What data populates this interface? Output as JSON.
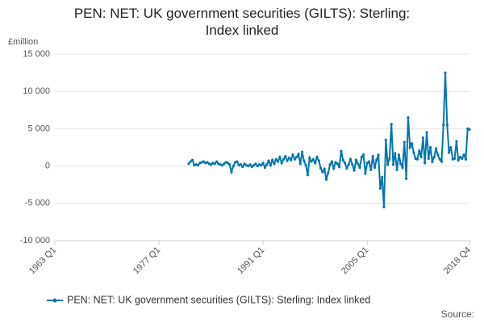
{
  "chart_data": {
    "type": "line",
    "title": "PEN: NET: UK government securities (GILTS): Sterling: Index linked",
    "y_unit": "£million",
    "source_label": "Source:",
    "categories": [
      "1963 Q1",
      null,
      null,
      null,
      null,
      null,
      null,
      null,
      null,
      null,
      null,
      null,
      null,
      null,
      null,
      null,
      null,
      null,
      null,
      null,
      null,
      null,
      null,
      null,
      null,
      null,
      null,
      null,
      null,
      null,
      null,
      null,
      null,
      null,
      null,
      null,
      null,
      null,
      null,
      null,
      null,
      null,
      null,
      null,
      null,
      null,
      null,
      null,
      null,
      null,
      null,
      null,
      null,
      null,
      null,
      null,
      "1977 Q1",
      null,
      null,
      null,
      null,
      null,
      null,
      null,
      null,
      null,
      null,
      null,
      null,
      null,
      null,
      null,
      null,
      null,
      null,
      null,
      null,
      null,
      null,
      null,
      null,
      null,
      null,
      null,
      null,
      null,
      null,
      null,
      null,
      null,
      null,
      null,
      null,
      null,
      null,
      null,
      null,
      null,
      null,
      null,
      null,
      null,
      null,
      null,
      null,
      null,
      null,
      null,
      null,
      null,
      null,
      null,
      "1991 Q1",
      null,
      null,
      null,
      null,
      null,
      null,
      null,
      null,
      null,
      null,
      null,
      null,
      null,
      null,
      null,
      null,
      null,
      null,
      null,
      null,
      null,
      null,
      null,
      null,
      null,
      null,
      null,
      null,
      null,
      null,
      null,
      null,
      null,
      null,
      null,
      null,
      null,
      null,
      null,
      null,
      null,
      null,
      null,
      null,
      null,
      null,
      null,
      null,
      null,
      null,
      null,
      null,
      null,
      null,
      null,
      "2005 Q1",
      null,
      null,
      null,
      null,
      null,
      null,
      null,
      null,
      null,
      null,
      null,
      null,
      null,
      null,
      null,
      null,
      null,
      null,
      null,
      null,
      null,
      null,
      null,
      null,
      null,
      null,
      null,
      null,
      null,
      null,
      null,
      null,
      null,
      null,
      null,
      null,
      null,
      null,
      null,
      null,
      null,
      null,
      null,
      null,
      null,
      null,
      null,
      null,
      null,
      null,
      null,
      null,
      null,
      null,
      "2018 Q4"
    ],
    "series": [
      {
        "name": "PEN: NET: UK government securities (GILTS): Sterling: Index linked",
        "color": "#0075b0",
        "values": [
          null,
          null,
          null,
          null,
          null,
          null,
          null,
          null,
          null,
          null,
          null,
          null,
          null,
          null,
          null,
          null,
          null,
          null,
          null,
          null,
          null,
          null,
          null,
          null,
          null,
          null,
          null,
          null,
          null,
          null,
          null,
          null,
          null,
          null,
          null,
          null,
          null,
          null,
          null,
          null,
          null,
          null,
          null,
          null,
          null,
          null,
          null,
          null,
          null,
          null,
          null,
          null,
          null,
          null,
          null,
          null,
          null,
          null,
          null,
          null,
          null,
          null,
          null,
          null,
          null,
          null,
          null,
          null,
          null,
          null,
          null,
          null,
          300,
          600,
          800,
          100,
          200,
          100,
          400,
          500,
          600,
          400,
          500,
          300,
          200,
          400,
          300,
          600,
          300,
          200,
          100,
          300,
          500,
          400,
          200,
          -800,
          0,
          500,
          600,
          100,
          200,
          -100,
          300,
          100,
          0,
          200,
          -100,
          100,
          300,
          0,
          200,
          100,
          400,
          -200,
          200,
          700,
          100,
          800,
          300,
          900,
          600,
          1200,
          400,
          900,
          1300,
          700,
          1100,
          800,
          1500,
          900,
          1200,
          1600,
          300,
          1900,
          700,
          100,
          -1200,
          1100,
          600,
          900,
          400,
          1200,
          700,
          -300,
          -800,
          -400,
          -1800,
          -900,
          200,
          600,
          -300,
          500,
          300,
          -100,
          2000,
          800,
          400,
          -300,
          200,
          900,
          200,
          -600,
          800,
          300,
          -200,
          1200,
          1500,
          -1000,
          400,
          600,
          -500,
          1300,
          -200,
          800,
          1500,
          -3000,
          -1500,
          -5500,
          3500,
          200,
          1000,
          5600,
          200,
          1700,
          -500,
          1500,
          300,
          -200,
          3200,
          -1700,
          6500,
          2500,
          3000,
          1800,
          1000,
          900,
          2000,
          1200,
          3800,
          400,
          4500,
          1000,
          2500,
          600,
          1200,
          2300,
          1500,
          900,
          600,
          5500,
          12500,
          5500,
          1800,
          2500,
          900,
          1000,
          3300,
          800,
          1200,
          1000,
          1500,
          900,
          5000,
          4900
        ]
      }
    ],
    "ylim": [
      -10000,
      15000
    ],
    "yticks": [
      {
        "value": -10000,
        "label": "-10 000"
      },
      {
        "value": -5000,
        "label": "-5 000"
      },
      0,
      {
        "value": 5000,
        "label": "5 000"
      },
      {
        "value": 10000,
        "label": "10 000"
      },
      {
        "value": 15000,
        "label": "15 000"
      }
    ],
    "grid": true
  }
}
